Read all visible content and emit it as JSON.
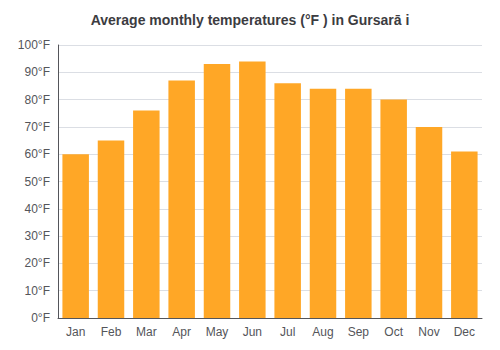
{
  "chart_data": {
    "type": "bar",
    "title": "Average monthly temperatures (°F ) in Gursarā i",
    "categories": [
      "Jan",
      "Feb",
      "Mar",
      "Apr",
      "May",
      "Jun",
      "Jul",
      "Aug",
      "Sep",
      "Oct",
      "Nov",
      "Dec"
    ],
    "values": [
      60,
      65,
      76,
      87,
      93,
      94,
      86,
      84,
      84,
      80,
      70,
      61
    ],
    "color": "#FFA726",
    "ylim": [
      0,
      100
    ],
    "yticks": [
      {
        "value": 0,
        "label": "0°F"
      },
      {
        "value": 10,
        "label": "10°F"
      },
      {
        "value": 20,
        "label": "20°F"
      },
      {
        "value": 30,
        "label": "30°F"
      },
      {
        "value": 40,
        "label": "40°F"
      },
      {
        "value": 50,
        "label": "50°F"
      },
      {
        "value": 60,
        "label": "60°F"
      },
      {
        "value": 70,
        "label": "70°F"
      },
      {
        "value": 80,
        "label": "80°F"
      },
      {
        "value": 90,
        "label": "90°F"
      },
      {
        "value": 100,
        "label": "100°F"
      }
    ],
    "grid": true
  }
}
